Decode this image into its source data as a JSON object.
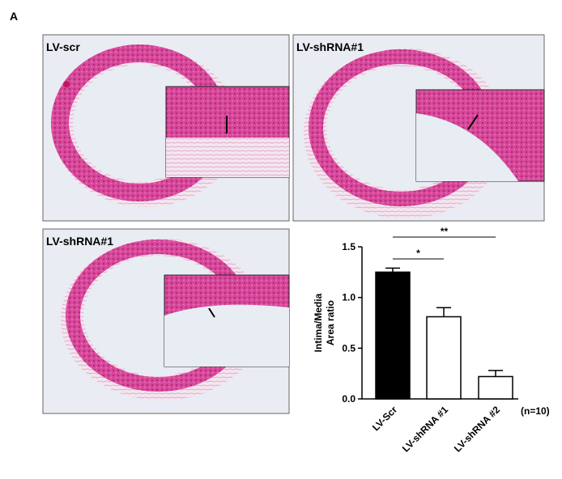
{
  "panel_label": "A",
  "images": [
    {
      "label": "LV-scr"
    },
    {
      "label": "LV-shRNA#1"
    },
    {
      "label": "LV-shRNA#1"
    }
  ],
  "chart_data": {
    "type": "bar",
    "ylabel": [
      "Intima/Media",
      "Area ratio"
    ],
    "categories": [
      "LV-Scr",
      "LV-shRNA  #1",
      "LV-shRNA  #2"
    ],
    "values": [
      1.25,
      0.81,
      0.22
    ],
    "errors": [
      0.04,
      0.09,
      0.06
    ],
    "colors": [
      "#000000",
      "#ffffff",
      "#ffffff"
    ],
    "ylim": [
      0,
      1.5
    ],
    "yticks": [
      {
        "value": 0,
        "label": "0.0"
      },
      0.5,
      {
        "value": 1,
        "label": "1.0"
      },
      1.5
    ],
    "annotations": [
      "*",
      "**"
    ],
    "note": "(n=10)"
  }
}
